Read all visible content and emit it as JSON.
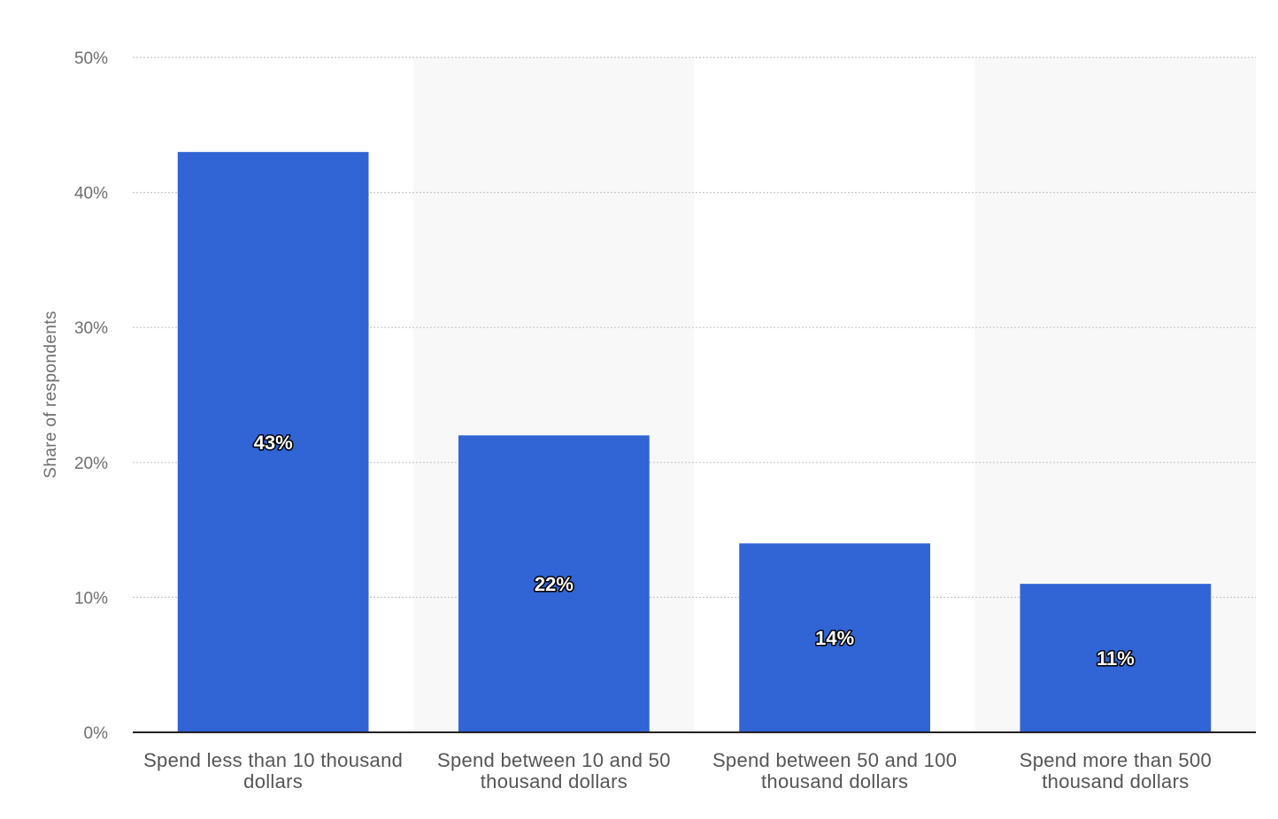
{
  "chart_data": {
    "type": "bar",
    "categories": [
      [
        "Spend less than 10 thousand",
        "dollars"
      ],
      [
        "Spend between 10 and 50",
        "thousand dollars"
      ],
      [
        "Spend between 50 and 100",
        "thousand dollars"
      ],
      [
        "Spend more than 500",
        "thousand dollars"
      ]
    ],
    "values": [
      43,
      22,
      14,
      11
    ],
    "data_labels": [
      "43%",
      "22%",
      "14%",
      "11%"
    ],
    "ylabel": "Share of respondents",
    "ylim": [
      0,
      50
    ],
    "yticks": [
      0,
      10,
      20,
      30,
      40,
      50
    ],
    "ytick_labels": [
      "0%",
      "10%",
      "20%",
      "30%",
      "40%",
      "50%"
    ],
    "grid": true,
    "colors": {
      "bar": "#3164d4",
      "alt_band": "#f8f8f8",
      "grid": "#c8c8c8",
      "axis": "#222222"
    }
  }
}
